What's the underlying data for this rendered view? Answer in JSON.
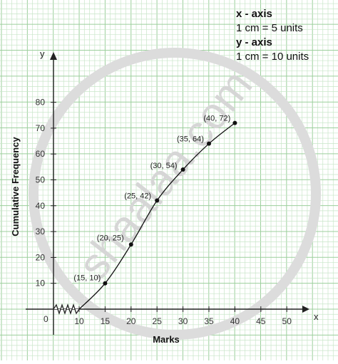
{
  "chart_data": {
    "type": "line",
    "xlabel": "Marks",
    "ylabel": "Cumulative Frequency",
    "x_axis_letter": "x",
    "y_axis_letter": "y",
    "origin_label": "0",
    "xlim": [
      10,
      50
    ],
    "ylim": [
      0,
      80
    ],
    "x_ticks": [
      "10",
      "15",
      "20",
      "25",
      "30",
      "35",
      "40",
      "45",
      "50"
    ],
    "y_ticks": [
      "10",
      "20",
      "30",
      "40",
      "50",
      "60",
      "70",
      "80"
    ],
    "grid": true,
    "x_axis_break": true,
    "points": [
      {
        "x": 15,
        "y": 10,
        "label": "(15, 10)"
      },
      {
        "x": 20,
        "y": 25,
        "label": "(20, 25)"
      },
      {
        "x": 25,
        "y": 42,
        "label": "(25, 42)"
      },
      {
        "x": 30,
        "y": 54,
        "label": "(30, 54)"
      },
      {
        "x": 35,
        "y": 64,
        "label": "(35, 64)"
      },
      {
        "x": 40,
        "y": 72,
        "label": "(40, 72)"
      }
    ],
    "scale_note": {
      "x_title": "x - axis",
      "x_scale": "1 cm = 5 units",
      "y_title": "y - axis",
      "y_scale": "1 cm = 10 units"
    },
    "watermark": "shaalaa.com",
    "colors": {
      "grid_minor": "#c9e6c9",
      "grid_major": "#9ccf9c",
      "axis": "#222222",
      "line": "#111111",
      "watermark": "#d9d9d9"
    }
  }
}
